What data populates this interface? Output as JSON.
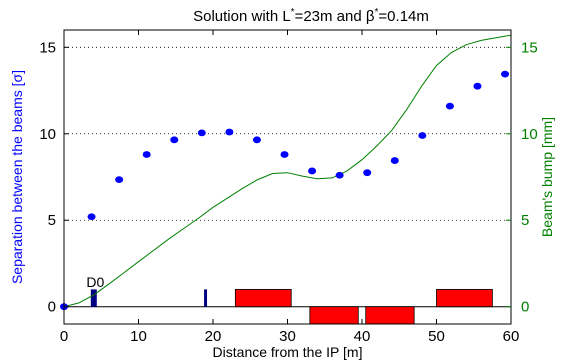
{
  "chart_data": {
    "type": "scatter",
    "title": {
      "prefix": "Solution with L",
      "sup1": "*",
      "middle": "=23m and β",
      "sup2": "*",
      "suffix": "=0.14m"
    },
    "xlabel": "Distance from the IP [m]",
    "ylabel_left": "Separation between the beams [σ]",
    "ylabel_right": "Beam's bump [mm]",
    "xlim": [
      0,
      60
    ],
    "ylim_left": [
      -1,
      16
    ],
    "ylim_right": [
      -1,
      16
    ],
    "x_ticks": [
      0,
      10,
      20,
      30,
      40,
      50,
      60
    ],
    "y_ticks_left": [
      0,
      5,
      10,
      15
    ],
    "y_ticks_right": [
      0,
      5,
      10,
      15
    ],
    "grid": "dotted horizontal at 5, 10, 15",
    "colors": {
      "separation": "#0000ff",
      "bump": "#008000",
      "magnet": "#ff0000",
      "d0": "#000080",
      "axis": "#000000"
    },
    "separation_points": {
      "x": [
        0,
        3.7,
        7.4,
        11.1,
        14.8,
        18.5,
        22.2,
        25.9,
        29.6,
        33.3,
        37.0,
        40.7,
        44.4,
        48.1,
        51.8,
        55.5,
        59.2
      ],
      "y": [
        0,
        5.2,
        7.35,
        8.8,
        9.65,
        10.05,
        10.1,
        9.65,
        8.8,
        7.85,
        7.6,
        7.75,
        8.45,
        9.9,
        11.6,
        12.75,
        13.45
      ]
    },
    "bump_curve": {
      "x": [
        0,
        2,
        4,
        6,
        8,
        10,
        12,
        14,
        16,
        18,
        20,
        22,
        24,
        26,
        28,
        30,
        32,
        34,
        36,
        38,
        40,
        42,
        44,
        46,
        48,
        50,
        52,
        54,
        56,
        58,
        60
      ],
      "y": [
        0,
        0.22,
        0.68,
        1.3,
        1.95,
        2.6,
        3.25,
        3.9,
        4.5,
        5.1,
        5.75,
        6.3,
        6.85,
        7.35,
        7.7,
        7.75,
        7.55,
        7.4,
        7.45,
        7.85,
        8.5,
        9.3,
        10.2,
        11.4,
        12.75,
        13.95,
        14.7,
        15.15,
        15.4,
        15.55,
        15.7
      ]
    },
    "magnets": [
      {
        "x0": 23,
        "x1": 30.5,
        "y0": 0,
        "y1": 1,
        "color": "#ff0000"
      },
      {
        "x0": 33,
        "x1": 39.5,
        "y0": -1,
        "y1": 0,
        "color": "#ff0000"
      },
      {
        "x0": 40.5,
        "x1": 47,
        "y0": -1,
        "y1": 0,
        "color": "#ff0000"
      },
      {
        "x0": 50,
        "x1": 57.5,
        "y0": 0,
        "y1": 1,
        "color": "#ff0000"
      }
    ],
    "d0_blocks": [
      {
        "x0": 3.6,
        "x1": 4.4,
        "y0": 0,
        "y1": 1,
        "color": "#000080"
      },
      {
        "x0": 18.8,
        "x1": 19.2,
        "y0": 0,
        "y1": 1,
        "color": "#000080"
      }
    ],
    "annotations": [
      {
        "text": "D0",
        "x": 3.0,
        "y": 1.15
      }
    ]
  }
}
